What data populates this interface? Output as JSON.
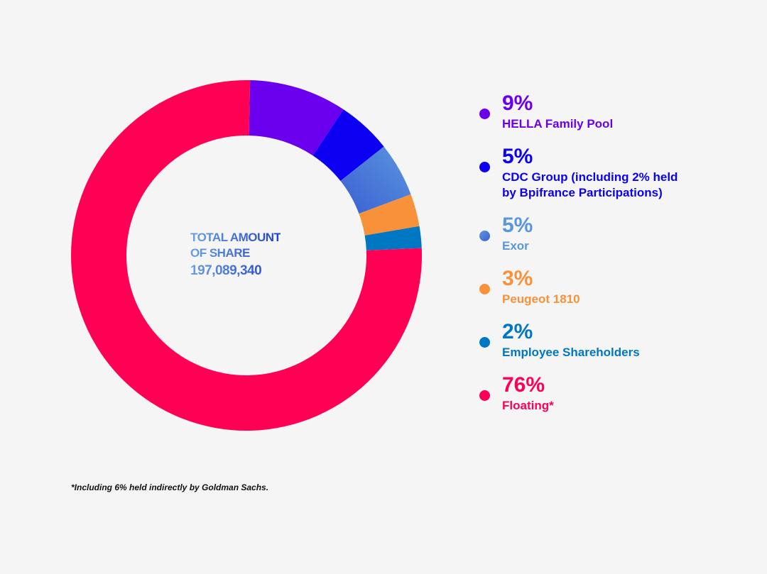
{
  "chart_data": {
    "type": "pie",
    "donut": true,
    "center_title": [
      "TOTAL AMOUNT",
      "OF SHARE"
    ],
    "center_value": "197,089,340",
    "slices": [
      {
        "label": "HELLA Family Pool",
        "value": 9,
        "pct_label": "9%",
        "color": "#6a00ee"
      },
      {
        "label": "CDC Group (including 2% held by Bpifrance Participations)",
        "label_lines": [
          "CDC Group (including 2% held",
          "by Bpifrance Participations)"
        ],
        "value": 5,
        "pct_label": "5%",
        "color": "#0b00f2"
      },
      {
        "label": "Exor",
        "value": 5,
        "pct_label": "5%",
        "color": "#5a96de",
        "color2": "#3b5fd2"
      },
      {
        "label": "Peugeot 1810",
        "value": 3,
        "pct_label": "3%",
        "color": "#f7923a"
      },
      {
        "label": "Employee Shareholders",
        "value": 2,
        "pct_label": "2%",
        "color": "#0077c2"
      },
      {
        "label": "Floating*",
        "value": 76,
        "pct_label": "76%",
        "color": "#ff0055"
      }
    ],
    "footnote": "*Including 6% held indirectly by Goldman Sachs."
  }
}
